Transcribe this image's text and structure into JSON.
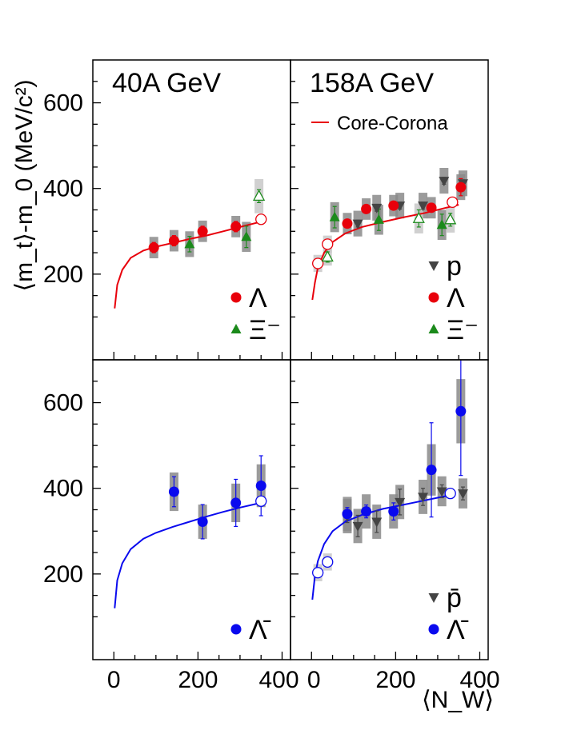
{
  "figure": {
    "ylabel": "⟨m_t⟩-m_0 (MeV/c²)",
    "xlabel": "⟨N_W⟩",
    "x_ticks": [
      "0",
      "200",
      "400"
    ],
    "y_ticks": [
      "200",
      "400",
      "600"
    ],
    "ylim": [
      0,
      700
    ],
    "xlim": [
      -50,
      420
    ]
  },
  "chart_data": [
    {
      "type": "scatter",
      "panel": "top-left",
      "title": "40A GeV",
      "legend": [
        {
          "label": "Λ",
          "marker": "circle",
          "color": "#e8000b"
        },
        {
          "label": "Ξ⁻",
          "marker": "triangle-up",
          "color": "#1b8a1b"
        }
      ],
      "curves": [
        {
          "name": "",
          "color": "#e8000b",
          "x": [
            2,
            8,
            20,
            40,
            70,
            100,
            140,
            180,
            220,
            260,
            300,
            340,
            350
          ],
          "y": [
            120,
            175,
            210,
            238,
            255,
            264,
            273,
            282,
            290,
            300,
            310,
            320,
            325
          ]
        }
      ],
      "series": [
        {
          "name": "Λ",
          "marker": "circle",
          "color": "#e8000b",
          "points": [
            {
              "x": 95,
              "y": 262,
              "err": 12,
              "sys": 25
            },
            {
              "x": 143,
              "y": 278,
              "err": 12,
              "sys": 25
            },
            {
              "x": 211,
              "y": 300,
              "err": 12,
              "sys": 25
            },
            {
              "x": 290,
              "y": 311,
              "err": 12,
              "sys": 25
            },
            {
              "x": 350,
              "y": 328,
              "err": 8,
              "sys": 0,
              "open": true
            }
          ]
        },
        {
          "name": "Ξ⁻",
          "marker": "triangle-up",
          "color": "#1b8a1b",
          "points": [
            {
              "x": 180,
              "y": 270,
              "err": 18,
              "sys": 30
            },
            {
              "x": 315,
              "y": 287,
              "err": 25,
              "sys": 35
            },
            {
              "x": 345,
              "y": 382,
              "err": 15,
              "sys": 40,
              "open": true
            }
          ]
        }
      ]
    },
    {
      "type": "scatter",
      "panel": "top-right",
      "title": "158A GeV",
      "legend_curve": "Core-Corona",
      "legend": [
        {
          "label": "p",
          "marker": "triangle-down",
          "color": "#444444"
        },
        {
          "label": "Λ",
          "marker": "circle",
          "color": "#e8000b"
        },
        {
          "label": "Ξ⁻",
          "marker": "triangle-up",
          "color": "#1b8a1b"
        }
      ],
      "curves": [
        {
          "name": "Core-Corona",
          "color": "#e8000b",
          "x": [
            2,
            8,
            15,
            30,
            50,
            80,
            120,
            170,
            220,
            270,
            320,
            350
          ],
          "y": [
            140,
            180,
            215,
            250,
            275,
            295,
            310,
            322,
            333,
            343,
            355,
            362
          ]
        }
      ],
      "series": [
        {
          "name": "p",
          "marker": "triangle-down",
          "color": "#444444",
          "points": [
            {
              "x": 110,
              "y": 318,
              "err": 8,
              "sys": 30
            },
            {
              "x": 155,
              "y": 355,
              "err": 8,
              "sys": 30
            },
            {
              "x": 210,
              "y": 360,
              "err": 8,
              "sys": 30
            },
            {
              "x": 265,
              "y": 360,
              "err": 8,
              "sys": 30
            },
            {
              "x": 315,
              "y": 418,
              "err": 8,
              "sys": 30
            },
            {
              "x": 360,
              "y": 412,
              "err": 8,
              "sys": 30
            }
          ]
        },
        {
          "name": "Λ",
          "marker": "circle",
          "color": "#e8000b",
          "points": [
            {
              "x": 15,
              "y": 225,
              "err": 6,
              "sys": 20,
              "open": true
            },
            {
              "x": 38,
              "y": 270,
              "err": 6,
              "sys": 20,
              "open": true
            },
            {
              "x": 85,
              "y": 318,
              "err": 8,
              "sys": 25
            },
            {
              "x": 130,
              "y": 352,
              "err": 8,
              "sys": 25
            },
            {
              "x": 195,
              "y": 360,
              "err": 8,
              "sys": 25
            },
            {
              "x": 285,
              "y": 355,
              "err": 10,
              "sys": 25
            },
            {
              "x": 335,
              "y": 368,
              "err": 8,
              "sys": 0,
              "open": true
            },
            {
              "x": 355,
              "y": 403,
              "err": 20,
              "sys": 30
            }
          ]
        },
        {
          "name": "Ξ⁻",
          "marker": "triangle-up",
          "color": "#1b8a1b",
          "points": [
            {
              "x": 38,
              "y": 240,
              "err": 12,
              "sys": 20,
              "open": true
            },
            {
              "x": 55,
              "y": 333,
              "err": 25,
              "sys": 35
            },
            {
              "x": 160,
              "y": 327,
              "err": 25,
              "sys": 35
            },
            {
              "x": 255,
              "y": 330,
              "err": 20,
              "sys": 35,
              "open": true
            },
            {
              "x": 310,
              "y": 315,
              "err": 25,
              "sys": 35
            },
            {
              "x": 330,
              "y": 327,
              "err": 15,
              "sys": 30,
              "open": true
            }
          ]
        }
      ]
    },
    {
      "type": "scatter",
      "panel": "bottom-left",
      "title": "",
      "legend": [
        {
          "label": "Λ̄",
          "marker": "circle",
          "color": "#0a0aee"
        }
      ],
      "curves": [
        {
          "name": "",
          "color": "#0a0aee",
          "x": [
            2,
            8,
            20,
            40,
            70,
            100,
            140,
            180,
            220,
            260,
            300,
            340,
            350
          ],
          "y": [
            120,
            185,
            225,
            258,
            282,
            296,
            310,
            322,
            334,
            345,
            355,
            364,
            366
          ]
        }
      ],
      "series": [
        {
          "name": "Λ̄",
          "marker": "circle",
          "color": "#0a0aee",
          "points": [
            {
              "x": 143,
              "y": 392,
              "err": 35,
              "sys": 45
            },
            {
              "x": 211,
              "y": 322,
              "err": 40,
              "sys": 40
            },
            {
              "x": 290,
              "y": 366,
              "err": 55,
              "sys": 45
            },
            {
              "x": 350,
              "y": 406,
              "err": 70,
              "sys": 50
            },
            {
              "x": 350,
              "y": 370,
              "err": 8,
              "sys": 0,
              "open": true
            }
          ]
        }
      ]
    },
    {
      "type": "scatter",
      "panel": "bottom-right",
      "title": "",
      "legend": [
        {
          "label": "p̄",
          "marker": "triangle-down",
          "color": "#444444"
        },
        {
          "label": "Λ̄",
          "marker": "circle",
          "color": "#0a0aee"
        }
      ],
      "curves": [
        {
          "name": "",
          "color": "#0a0aee",
          "x": [
            2,
            8,
            15,
            30,
            50,
            80,
            120,
            170,
            220,
            270,
            320,
            340
          ],
          "y": [
            140,
            195,
            230,
            270,
            300,
            322,
            338,
            352,
            362,
            372,
            382,
            386
          ]
        }
      ],
      "series": [
        {
          "name": "p̄",
          "marker": "triangle-down",
          "color": "#444444",
          "points": [
            {
              "x": 85,
              "y": 335,
              "err": 15,
              "sys": 40
            },
            {
              "x": 110,
              "y": 312,
              "err": 25,
              "sys": 40
            },
            {
              "x": 155,
              "y": 322,
              "err": 25,
              "sys": 40
            },
            {
              "x": 210,
              "y": 368,
              "err": 30,
              "sys": 40
            },
            {
              "x": 265,
              "y": 380,
              "err": 20,
              "sys": 40
            },
            {
              "x": 310,
              "y": 393,
              "err": 15,
              "sys": 35
            },
            {
              "x": 360,
              "y": 388,
              "err": 15,
              "sys": 35
            }
          ]
        },
        {
          "name": "Λ̄",
          "marker": "circle",
          "color": "#0a0aee",
          "points": [
            {
              "x": 15,
              "y": 203,
              "err": 10,
              "sys": 20,
              "open": true
            },
            {
              "x": 38,
              "y": 228,
              "err": 10,
              "sys": 20,
              "open": true
            },
            {
              "x": 85,
              "y": 340,
              "err": 15,
              "sys": 40
            },
            {
              "x": 130,
              "y": 346,
              "err": 15,
              "sys": 40
            },
            {
              "x": 195,
              "y": 346,
              "err": 20,
              "sys": 40
            },
            {
              "x": 285,
              "y": 443,
              "err": 110,
              "sys": 60
            },
            {
              "x": 330,
              "y": 388,
              "err": 8,
              "sys": 0,
              "open": true
            },
            {
              "x": 355,
              "y": 580,
              "err": 150,
              "sys": 75
            }
          ]
        }
      ]
    }
  ]
}
